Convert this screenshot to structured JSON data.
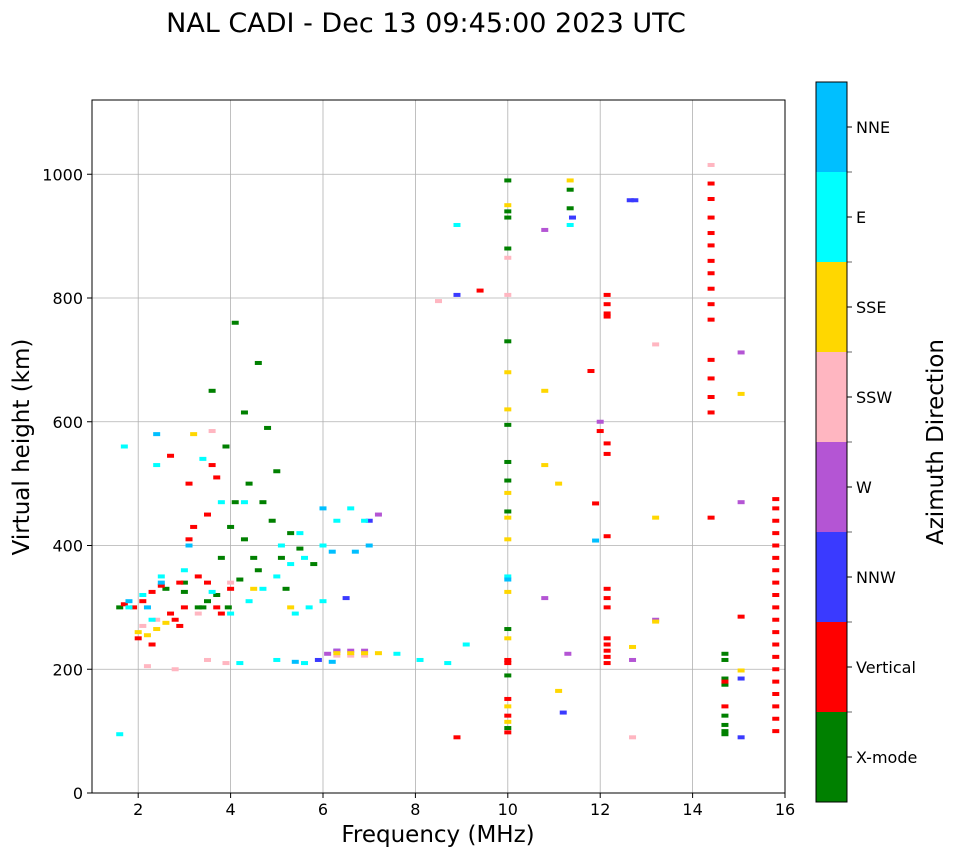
{
  "chart_data": {
    "type": "scatter",
    "title": "NAL CADI - Dec 13 09:45:00 2023 UTC",
    "xlabel": "Frequency (MHz)",
    "ylabel": "Virtual height (km)",
    "xlim": [
      1,
      16
    ],
    "ylim": [
      0,
      1120
    ],
    "xticks": [
      2,
      4,
      6,
      8,
      10,
      12,
      14,
      16
    ],
    "yticks": [
      0,
      200,
      400,
      600,
      800,
      1000
    ],
    "grid": true,
    "colorbar": {
      "label": "Azimuth Direction",
      "position": "right",
      "categories": [
        {
          "name": "X-mode",
          "color": "#008000"
        },
        {
          "name": "Vertical",
          "color": "#ff0000"
        },
        {
          "name": "NNW",
          "color": "#3a3aff"
        },
        {
          "name": "W",
          "color": "#b455d4"
        },
        {
          "name": "SSW",
          "color": "#ffb6c1"
        },
        {
          "name": "SSE",
          "color": "#ffd700"
        },
        {
          "name": "E",
          "color": "#00ffff"
        },
        {
          "name": "NNE",
          "color": "#00bfff"
        }
      ]
    },
    "series": [
      {
        "name": "X-mode",
        "points": [
          [
            1.6,
            300
          ],
          [
            2.6,
            330
          ],
          [
            3.0,
            340
          ],
          [
            3.4,
            300
          ],
          [
            3.8,
            380
          ],
          [
            4.0,
            430
          ],
          [
            4.1,
            470
          ],
          [
            4.3,
            410
          ],
          [
            4.6,
            360
          ],
          [
            4.7,
            470
          ],
          [
            4.9,
            440
          ],
          [
            5.1,
            380
          ],
          [
            5.3,
            420
          ],
          [
            5.5,
            395
          ],
          [
            5.2,
            330
          ],
          [
            3.9,
            560
          ],
          [
            4.1,
            760
          ],
          [
            4.3,
            615
          ],
          [
            4.6,
            695
          ],
          [
            3.5,
            310
          ],
          [
            3.7,
            320
          ],
          [
            3.95,
            300
          ],
          [
            4.2,
            345
          ],
          [
            4.5,
            380
          ],
          [
            3.0,
            325
          ],
          [
            3.3,
            300
          ],
          [
            5.8,
            370
          ],
          [
            4.8,
            590
          ],
          [
            3.6,
            650
          ],
          [
            5.0,
            520
          ],
          [
            4.4,
            500
          ],
          [
            10.0,
            990
          ],
          [
            10.0,
            940
          ],
          [
            10.0,
            930
          ],
          [
            10.0,
            880
          ],
          [
            10.0,
            730
          ],
          [
            10.0,
            595
          ],
          [
            10.0,
            535
          ],
          [
            10.0,
            505
          ],
          [
            10.0,
            455
          ],
          [
            10.0,
            265
          ],
          [
            10.0,
            190
          ],
          [
            10.0,
            105
          ],
          [
            14.7,
            225
          ],
          [
            14.7,
            215
          ],
          [
            14.7,
            185
          ],
          [
            14.7,
            175
          ],
          [
            14.7,
            125
          ],
          [
            14.7,
            110
          ],
          [
            14.7,
            100
          ],
          [
            14.7,
            95
          ],
          [
            11.35,
            945
          ],
          [
            11.35,
            975
          ]
        ]
      },
      {
        "name": "Vertical",
        "points": [
          [
            1.7,
            305
          ],
          [
            1.9,
            300
          ],
          [
            2.1,
            310
          ],
          [
            2.3,
            325
          ],
          [
            2.5,
            335
          ],
          [
            2.7,
            290
          ],
          [
            2.8,
            280
          ],
          [
            2.9,
            270
          ],
          [
            3.0,
            300
          ],
          [
            3.1,
            410
          ],
          [
            3.2,
            430
          ],
          [
            3.3,
            350
          ],
          [
            3.5,
            340
          ],
          [
            3.7,
            300
          ],
          [
            3.8,
            290
          ],
          [
            4.0,
            330
          ],
          [
            2.0,
            250
          ],
          [
            2.3,
            240
          ],
          [
            2.9,
            340
          ],
          [
            3.6,
            530
          ],
          [
            3.7,
            510
          ],
          [
            3.5,
            450
          ],
          [
            3.1,
            500
          ],
          [
            2.7,
            545
          ],
          [
            8.9,
            90
          ],
          [
            9.4,
            812
          ],
          [
            10.0,
            215
          ],
          [
            10.0,
            210
          ],
          [
            10.0,
            152
          ],
          [
            10.0,
            125
          ],
          [
            10.0,
            98
          ],
          [
            11.9,
            468
          ],
          [
            12.0,
            585
          ],
          [
            12.15,
            805
          ],
          [
            12.15,
            790
          ],
          [
            12.15,
            775
          ],
          [
            12.15,
            770
          ],
          [
            12.15,
            565
          ],
          [
            12.15,
            548
          ],
          [
            12.15,
            415
          ],
          [
            12.15,
            330
          ],
          [
            12.15,
            315
          ],
          [
            12.15,
            300
          ],
          [
            12.15,
            250
          ],
          [
            12.15,
            240
          ],
          [
            12.15,
            230
          ],
          [
            12.15,
            220
          ],
          [
            12.15,
            210
          ],
          [
            11.8,
            682
          ],
          [
            14.4,
            985
          ],
          [
            14.4,
            960
          ],
          [
            14.4,
            930
          ],
          [
            14.4,
            905
          ],
          [
            14.4,
            885
          ],
          [
            14.4,
            860
          ],
          [
            14.4,
            840
          ],
          [
            14.4,
            815
          ],
          [
            14.4,
            790
          ],
          [
            14.4,
            765
          ],
          [
            14.4,
            700
          ],
          [
            14.4,
            670
          ],
          [
            14.4,
            640
          ],
          [
            14.4,
            615
          ],
          [
            14.4,
            445
          ],
          [
            15.05,
            285
          ],
          [
            14.7,
            180
          ],
          [
            14.7,
            140
          ],
          [
            15.8,
            475
          ],
          [
            15.8,
            460
          ],
          [
            15.8,
            440
          ],
          [
            15.8,
            420
          ],
          [
            15.8,
            400
          ],
          [
            15.8,
            380
          ],
          [
            15.8,
            360
          ],
          [
            15.8,
            340
          ],
          [
            15.8,
            320
          ],
          [
            15.8,
            300
          ],
          [
            15.8,
            280
          ],
          [
            15.8,
            260
          ],
          [
            15.8,
            240
          ],
          [
            15.8,
            220
          ],
          [
            15.8,
            200
          ],
          [
            15.8,
            180
          ],
          [
            15.8,
            160
          ],
          [
            15.8,
            140
          ],
          [
            15.8,
            120
          ],
          [
            15.8,
            100
          ]
        ]
      },
      {
        "name": "NNW",
        "points": [
          [
            8.9,
            805
          ],
          [
            11.4,
            930
          ],
          [
            12.65,
            958
          ],
          [
            12.75,
            958
          ],
          [
            6.5,
            315
          ],
          [
            5.9,
            215
          ],
          [
            6.3,
            230
          ],
          [
            15.05,
            185
          ],
          [
            15.05,
            90
          ],
          [
            11.2,
            130
          ],
          [
            7.0,
            440
          ]
        ]
      },
      {
        "name": "W",
        "points": [
          [
            10.8,
            910
          ],
          [
            10.8,
            315
          ],
          [
            11.3,
            225
          ],
          [
            12.0,
            600
          ],
          [
            12.7,
            215
          ],
          [
            13.2,
            280
          ],
          [
            15.05,
            712
          ],
          [
            15.05,
            470
          ],
          [
            6.3,
            230
          ],
          [
            6.6,
            230
          ],
          [
            6.9,
            230
          ],
          [
            7.2,
            450
          ],
          [
            6.1,
            225
          ]
        ]
      },
      {
        "name": "SSW",
        "points": [
          [
            8.5,
            795
          ],
          [
            10.0,
            865
          ],
          [
            10.0,
            805
          ],
          [
            13.2,
            725
          ],
          [
            12.7,
            90
          ],
          [
            14.4,
            1015
          ],
          [
            3.5,
            215
          ],
          [
            3.9,
            210
          ],
          [
            2.2,
            205
          ],
          [
            2.8,
            200
          ],
          [
            6.3,
            222
          ],
          [
            6.6,
            222
          ],
          [
            6.9,
            222
          ],
          [
            2.1,
            270
          ],
          [
            2.4,
            280
          ],
          [
            3.3,
            290
          ],
          [
            4.0,
            340
          ],
          [
            3.6,
            585
          ]
        ]
      },
      {
        "name": "SSE",
        "points": [
          [
            10.0,
            950
          ],
          [
            10.0,
            680
          ],
          [
            10.0,
            620
          ],
          [
            10.0,
            485
          ],
          [
            10.0,
            445
          ],
          [
            10.0,
            410
          ],
          [
            10.0,
            325
          ],
          [
            10.0,
            250
          ],
          [
            10.0,
            115
          ],
          [
            10.0,
            140
          ],
          [
            10.8,
            650
          ],
          [
            10.8,
            530
          ],
          [
            11.1,
            500
          ],
          [
            11.1,
            165
          ],
          [
            11.35,
            990
          ],
          [
            13.2,
            445
          ],
          [
            13.2,
            277
          ],
          [
            12.7,
            236
          ],
          [
            15.05,
            645
          ],
          [
            15.05,
            198
          ],
          [
            2.0,
            260
          ],
          [
            2.2,
            255
          ],
          [
            2.4,
            265
          ],
          [
            2.6,
            275
          ],
          [
            6.3,
            226
          ],
          [
            6.6,
            226
          ],
          [
            6.9,
            226
          ],
          [
            7.2,
            226
          ],
          [
            5.3,
            300
          ],
          [
            4.5,
            330
          ],
          [
            3.2,
            580
          ]
        ]
      },
      {
        "name": "E",
        "points": [
          [
            1.6,
            95
          ],
          [
            1.8,
            300
          ],
          [
            2.1,
            320
          ],
          [
            2.3,
            280
          ],
          [
            2.5,
            350
          ],
          [
            3.0,
            360
          ],
          [
            3.6,
            325
          ],
          [
            4.0,
            290
          ],
          [
            4.4,
            310
          ],
          [
            4.7,
            330
          ],
          [
            5.0,
            350
          ],
          [
            5.3,
            370
          ],
          [
            5.6,
            380
          ],
          [
            6.0,
            400
          ],
          [
            6.3,
            440
          ],
          [
            6.6,
            460
          ],
          [
            6.9,
            440
          ],
          [
            5.5,
            420
          ],
          [
            5.1,
            400
          ],
          [
            4.3,
            470
          ],
          [
            3.8,
            470
          ],
          [
            5.4,
            290
          ],
          [
            5.7,
            300
          ],
          [
            6.0,
            310
          ],
          [
            4.2,
            210
          ],
          [
            5.0,
            215
          ],
          [
            5.6,
            210
          ],
          [
            7.6,
            225
          ],
          [
            8.1,
            215
          ],
          [
            8.7,
            210
          ],
          [
            9.1,
            240
          ],
          [
            8.9,
            918
          ],
          [
            10.0,
            350
          ],
          [
            11.35,
            918
          ],
          [
            2.4,
            530
          ],
          [
            1.7,
            560
          ],
          [
            3.4,
            540
          ]
        ]
      },
      {
        "name": "NNE",
        "points": [
          [
            1.8,
            310
          ],
          [
            2.2,
            300
          ],
          [
            2.5,
            340
          ],
          [
            3.1,
            400
          ],
          [
            6.2,
            390
          ],
          [
            6.7,
            390
          ],
          [
            7.0,
            400
          ],
          [
            6.0,
            460
          ],
          [
            11.9,
            408
          ],
          [
            10.0,
            345
          ],
          [
            5.4,
            212
          ],
          [
            6.2,
            212
          ],
          [
            2.4,
            580
          ]
        ]
      }
    ]
  }
}
